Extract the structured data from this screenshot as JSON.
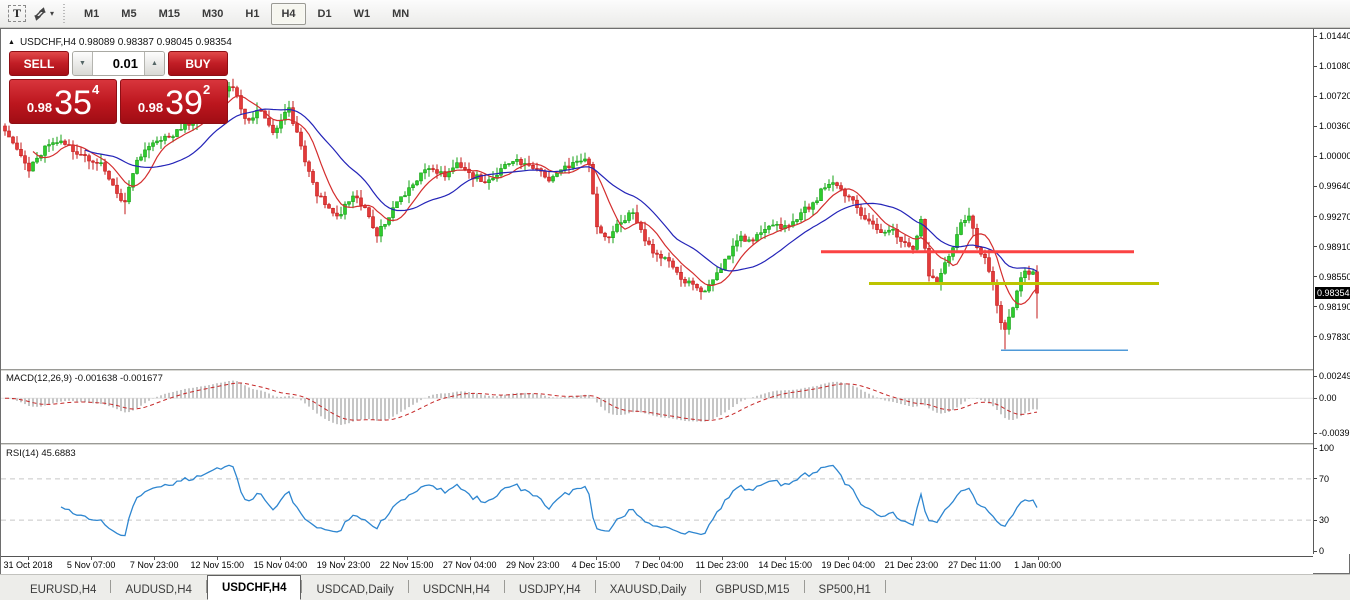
{
  "toolbar": {
    "text_tool_glyph": "T",
    "timeframes": [
      "M1",
      "M5",
      "M15",
      "M30",
      "H1",
      "H4",
      "D1",
      "W1",
      "MN"
    ],
    "active_timeframe": "H4"
  },
  "chart": {
    "symbol": "USDCHF",
    "period": "H4",
    "title_display": "USDCHF,H4  0.98089 0.98387 0.98045 0.98354",
    "ohlc": {
      "open": "0.98089",
      "high": "0.98387",
      "low": "0.98045",
      "close": "0.98354"
    }
  },
  "one_click": {
    "sell_label": "SELL",
    "buy_label": "BUY",
    "volume": "0.01",
    "sell_price": {
      "small": "0.98",
      "big": "35",
      "sup": "4"
    },
    "buy_price": {
      "small": "0.98",
      "big": "39",
      "sup": "2"
    }
  },
  "chart_data": {
    "type": "candlestick",
    "symbol": "USDCHF",
    "timeframe": "H4",
    "ylim": [
      0.9783,
      1.0144
    ],
    "grid": false,
    "price_axis": {
      "ticks": [
        "1.01440",
        "1.01080",
        "1.00720",
        "1.00360",
        "1.00000",
        "0.99640",
        "0.99270",
        "0.98910",
        "0.98550",
        "0.98190",
        "0.97830"
      ],
      "current": "0.98354"
    },
    "time_axis": [
      "31 Oct 2018",
      "5 Nov 07:00",
      "7 Nov 23:00",
      "12 Nov 15:00",
      "15 Nov 04:00",
      "19 Nov 23:00",
      "22 Nov 15:00",
      "27 Nov 04:00",
      "29 Nov 23:00",
      "4 Dec 15:00",
      "7 Dec 04:00",
      "11 Dec 23:00",
      "14 Dec 15:00",
      "19 Dec 04:00",
      "21 Dec 23:00",
      "27 Dec 11:00",
      "1 Jan 00:00"
    ],
    "candle_count": 259,
    "seed": 11,
    "close_path_anchors": [
      [
        0,
        1.003
      ],
      [
        3,
        1.0008
      ],
      [
        6,
        0.9982
      ],
      [
        10,
        1.0012
      ],
      [
        14,
        1.0018
      ],
      [
        18,
        1.0002
      ],
      [
        24,
        0.9992
      ],
      [
        28,
        0.9955
      ],
      [
        30,
        0.9945
      ],
      [
        33,
        0.9995
      ],
      [
        38,
        1.0018
      ],
      [
        44,
        1.0032
      ],
      [
        50,
        1.0052
      ],
      [
        55,
        1.0078
      ],
      [
        57,
        1.0082
      ],
      [
        60,
        1.0045
      ],
      [
        64,
        1.0054
      ],
      [
        67,
        1.0028
      ],
      [
        71,
        1.0058
      ],
      [
        74,
        1.0012
      ],
      [
        78,
        0.9952
      ],
      [
        83,
        0.9928
      ],
      [
        87,
        0.9952
      ],
      [
        90,
        0.9938
      ],
      [
        93,
        0.9904
      ],
      [
        97,
        0.9938
      ],
      [
        101,
        0.9962
      ],
      [
        106,
        0.9985
      ],
      [
        110,
        0.9975
      ],
      [
        113,
        0.9992
      ],
      [
        116,
        0.998
      ],
      [
        120,
        0.9968
      ],
      [
        124,
        0.9985
      ],
      [
        128,
        0.9996
      ],
      [
        132,
        0.9985
      ],
      [
        136,
        0.997
      ],
      [
        140,
        0.9988
      ],
      [
        144,
        0.9994
      ],
      [
        146,
        0.999
      ],
      [
        148,
        0.9915
      ],
      [
        151,
        0.9902
      ],
      [
        154,
        0.992
      ],
      [
        157,
        0.9932
      ],
      [
        160,
        0.9898
      ],
      [
        163,
        0.9882
      ],
      [
        166,
        0.9874
      ],
      [
        169,
        0.9852
      ],
      [
        172,
        0.9846
      ],
      [
        175,
        0.9838
      ],
      [
        178,
        0.986
      ],
      [
        181,
        0.988
      ],
      [
        184,
        0.9904
      ],
      [
        187,
        0.9898
      ],
      [
        190,
        0.9912
      ],
      [
        193,
        0.9918
      ],
      [
        196,
        0.9916
      ],
      [
        199,
        0.9932
      ],
      [
        202,
        0.9944
      ],
      [
        205,
        0.9962
      ],
      [
        207,
        0.9968
      ],
      [
        210,
        0.9952
      ],
      [
        213,
        0.9938
      ],
      [
        216,
        0.9922
      ],
      [
        219,
        0.9908
      ],
      [
        222,
        0.9912
      ],
      [
        225,
        0.9896
      ],
      [
        227,
        0.9888
      ],
      [
        229,
        0.9924
      ],
      [
        231,
        0.9856
      ],
      [
        233,
        0.9848
      ],
      [
        235,
        0.9872
      ],
      [
        237,
        0.989
      ],
      [
        239,
        0.992
      ],
      [
        241,
        0.9928
      ],
      [
        243,
        0.989
      ],
      [
        245,
        0.9878
      ],
      [
        247,
        0.9846
      ],
      [
        249,
        0.98
      ],
      [
        250,
        0.9792
      ],
      [
        252,
        0.9818
      ],
      [
        253,
        0.9838
      ],
      [
        254,
        0.9854
      ],
      [
        255,
        0.9862
      ],
      [
        256,
        0.9858
      ],
      [
        257,
        0.9861
      ],
      [
        258,
        0.98354
      ]
    ],
    "wick_extremes": [
      {
        "i": 30,
        "low": 0.993
      },
      {
        "i": 57,
        "high": 1.0092
      },
      {
        "i": 72,
        "high": 1.0066
      },
      {
        "i": 93,
        "low": 0.9896
      },
      {
        "i": 250,
        "low": 0.9768
      },
      {
        "i": 258,
        "low": 0.9805
      }
    ],
    "overlays": {
      "ma_fast": {
        "period": 8,
        "color": "#d42e2e"
      },
      "ma_slow": {
        "period": 21,
        "color": "#2424b8"
      },
      "hlines": [
        {
          "price": 0.9885,
          "color": "#fb4343",
          "width": 3,
          "x1": 820,
          "x2": 1133
        },
        {
          "price": 0.9847,
          "color": "#bdc400",
          "width": 3,
          "x1": 868,
          "x2": 1158
        },
        {
          "price": 0.9767,
          "color": "#4f9ad8",
          "width": 1.5,
          "x1": 1000,
          "x2": 1127
        }
      ]
    },
    "indicators": {
      "macd": {
        "display": "MACD(12,26,9) -0.001638 -0.001677",
        "params": [
          12,
          26,
          9
        ],
        "values": [
          "-0.001638",
          "-0.001677"
        ],
        "axis": [
          "0.002492",
          "0.00",
          "-0.003913"
        ],
        "axis_range": [
          0.002492,
          -0.003913
        ],
        "histogram_color": "#c6c6c6",
        "signal_color": "#c62828"
      },
      "rsi": {
        "display": "RSI(14) 45.6883",
        "period": 14,
        "value": "45.6883",
        "axis": [
          "100",
          "70",
          "30",
          "0"
        ],
        "levels": [
          70,
          30
        ],
        "line_color": "#2e86d0"
      }
    },
    "colors": {
      "bull_fill": "#2ecb2e",
      "bull_stroke": "#14a114",
      "bear_fill": "#e33a3a",
      "bear_stroke": "#c31a1a",
      "background": "#ffffff"
    }
  },
  "tabs": {
    "items": [
      {
        "label": "EURUSD,H4"
      },
      {
        "label": "AUDUSD,H4"
      },
      {
        "label": "USDCHF,H4"
      },
      {
        "label": "USDCAD,Daily"
      },
      {
        "label": "USDCNH,H4"
      },
      {
        "label": "USDJPY,H4"
      },
      {
        "label": "XAUUSD,Daily"
      },
      {
        "label": "GBPUSD,M15"
      },
      {
        "label": "SP500,H1"
      }
    ],
    "active": "USDCHF,H4"
  }
}
